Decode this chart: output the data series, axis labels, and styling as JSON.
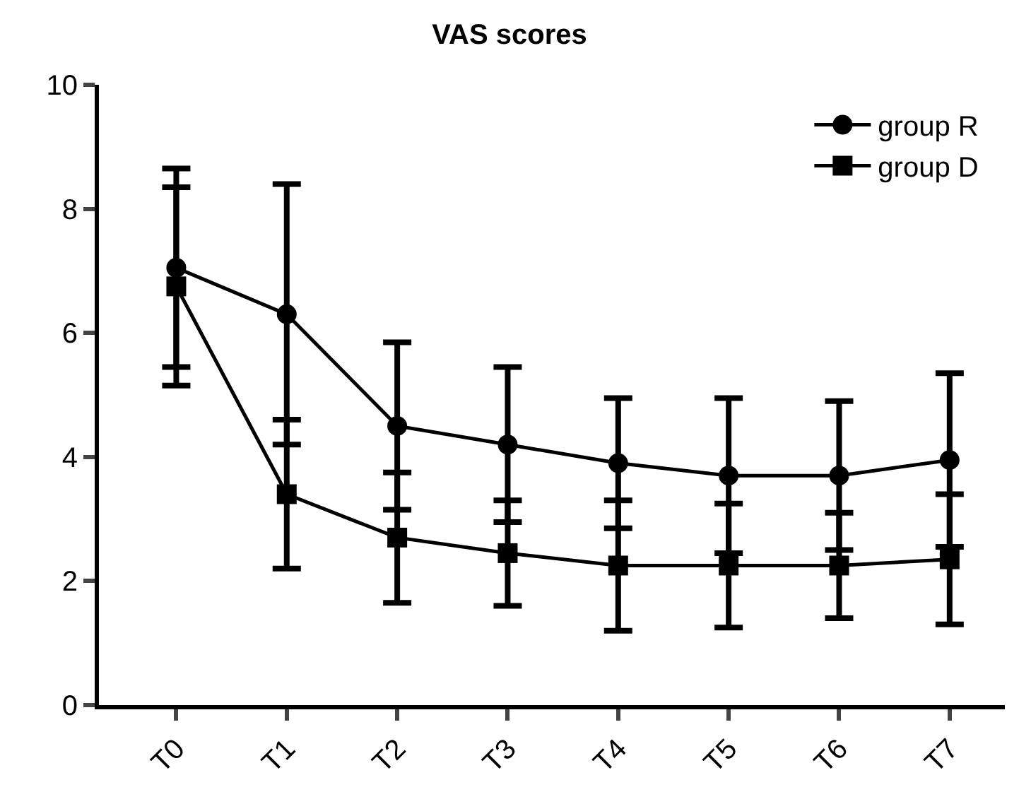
{
  "chart_data": {
    "type": "line",
    "title": "VAS scores",
    "categories": [
      "T0",
      "T1",
      "T2",
      "T3",
      "T4",
      "T5",
      "T6",
      "T7"
    ],
    "series": [
      {
        "name": "group R",
        "color": "#000000",
        "marker": "circle",
        "values": [
          7.05,
          6.3,
          4.5,
          4.2,
          3.9,
          3.7,
          3.7,
          3.95
        ],
        "errors": [
          1.6,
          2.1,
          1.35,
          1.25,
          1.05,
          1.25,
          1.2,
          1.4
        ]
      },
      {
        "name": "group D",
        "color": "#000000",
        "marker": "square",
        "values": [
          6.75,
          3.4,
          2.7,
          2.45,
          2.25,
          2.25,
          2.25,
          2.35
        ],
        "errors": [
          1.6,
          1.2,
          1.05,
          0.85,
          1.05,
          1.0,
          0.85,
          1.05
        ]
      }
    ],
    "ylim": [
      0,
      10
    ],
    "yticks": [
      0,
      2,
      4,
      6,
      8,
      10
    ],
    "legend": "top right",
    "line_style": "solid"
  }
}
